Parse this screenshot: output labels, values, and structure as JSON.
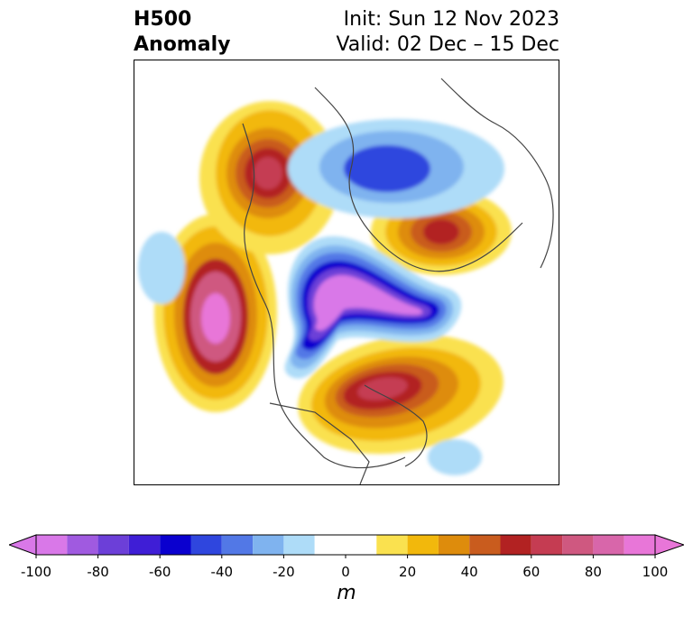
{
  "title": {
    "line1": "H500",
    "line2": "Anomaly"
  },
  "info": {
    "init": "Init: Sun 12 Nov 2023",
    "valid": "Valid: 02 Dec – 15 Dec"
  },
  "colorbar": {
    "unit": "m",
    "ticks": [
      "-100",
      "-80",
      "-60",
      "-40",
      "-20",
      "0",
      "20",
      "40",
      "60",
      "80",
      "100"
    ],
    "tick_values": [
      -100,
      -80,
      -60,
      -40,
      -20,
      0,
      20,
      40,
      60,
      80,
      100
    ],
    "levels": [
      -100,
      -90,
      -80,
      -70,
      -60,
      -50,
      -40,
      -30,
      -20,
      -10,
      10,
      20,
      30,
      40,
      50,
      60,
      70,
      80,
      90,
      100
    ],
    "colors": [
      "#d978e8",
      "#a05ae0",
      "#6c3fd8",
      "#3f1ed6",
      "#0a00cf",
      "#2f46de",
      "#5278e6",
      "#7fb3ef",
      "#aedcf8",
      "#ffffff",
      "#fae14f",
      "#f2b80c",
      "#de8c0c",
      "#c95c1e",
      "#b22222",
      "#c53c52",
      "#cf5880",
      "#d866aa",
      "#e876d8"
    ],
    "under_color": "#d978e8",
    "over_color": "#e876d8"
  }
}
